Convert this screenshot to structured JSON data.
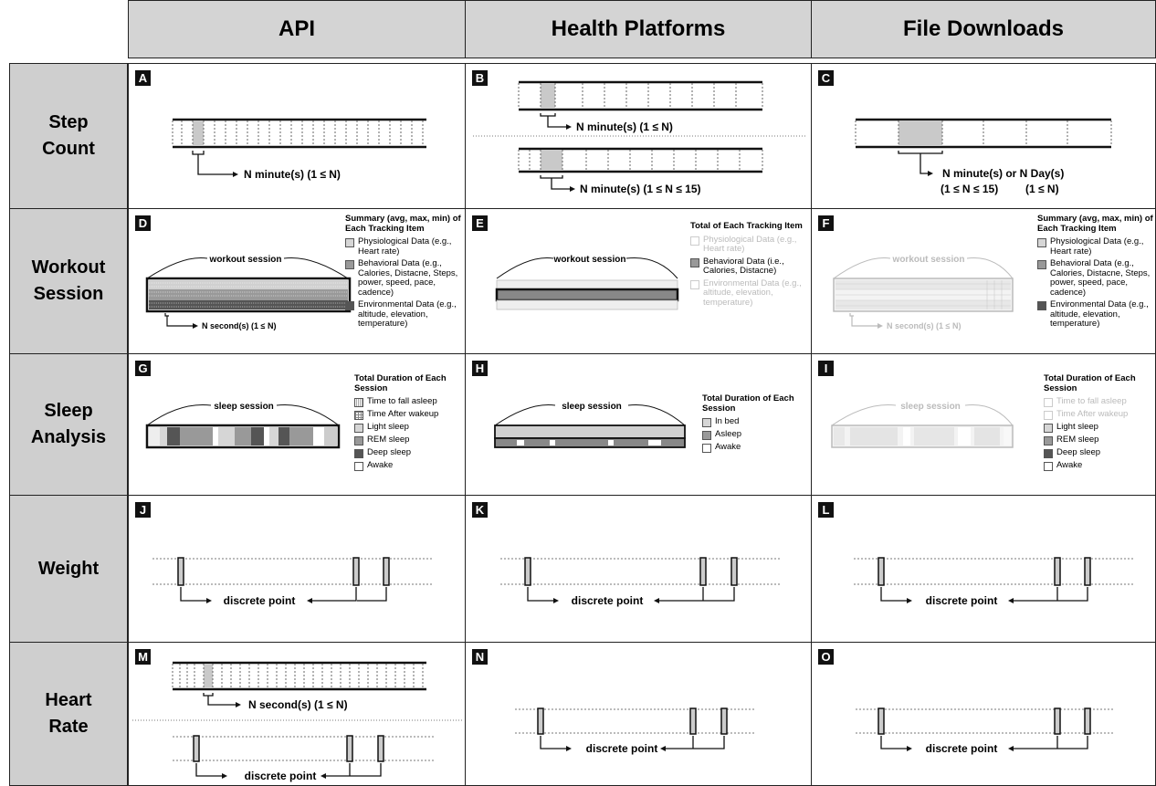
{
  "columns": [
    "API",
    "Health Platforms",
    "File Downloads"
  ],
  "rows": [
    {
      "label": "Step\nCount"
    },
    {
      "label": "Workout\nSession"
    },
    {
      "label": "Sleep\nAnalysis"
    },
    {
      "label": "Weight"
    },
    {
      "label": "Heart\nRate"
    }
  ],
  "panels": {
    "A": {
      "letter": "A",
      "label": "N minute(s) (1 ≤ N)"
    },
    "B": {
      "letter": "B",
      "label1": "N minute(s) (1 ≤ N)",
      "label2": "N minute(s) (1 ≤ N ≤ 15)"
    },
    "C": {
      "letter": "C",
      "label1": "N minute(s) or N Day(s)",
      "label2": "(1 ≤ N ≤ 15)",
      "label3": "(1 ≤ N)"
    },
    "D": {
      "letter": "D",
      "session": "workout session",
      "res": "N second(s) (1 ≤ N)",
      "legend_title": "Summary (avg, max, min) of Each Tracking Item",
      "items": [
        "Physiological Data (e.g., Heart rate)",
        "Behavioral Data (e.g., Calories, Distacne, Steps, power, speed, pace, cadence)",
        "Environmental Data (e.g., altitude, elevation, temperature)"
      ]
    },
    "E": {
      "letter": "E",
      "session": "workout session",
      "legend_title": "Total of Each Tracking Item",
      "items": [
        "Physiological Data (e.g., Heart rate)",
        "Behavioral Data (i.e., Calories, Distacne)",
        "Environmental Data (e.g., altitude, elevation, temperature)"
      ]
    },
    "F": {
      "letter": "F",
      "session": "workout session",
      "res": "N second(s) (1 ≤ N)",
      "legend_title": "Summary (avg, max, min) of Each Tracking Item",
      "items": [
        "Physiological Data (e.g., Heart rate)",
        "Behavioral Data (e.g., Calories, Distacne, Steps, power, speed, pace, cadence)",
        "Environmental Data (e.g., altitude, elevation, temperature)"
      ]
    },
    "G": {
      "letter": "G",
      "session": "sleep session",
      "legend_title": "Total Duration of Each Session",
      "items": [
        "Time to fall asleep",
        "Time After wakeup",
        "Light sleep",
        "REM sleep",
        "Deep sleep",
        "Awake"
      ]
    },
    "H": {
      "letter": "H",
      "session": "sleep session",
      "legend_title": "Total Duration of Each Session",
      "items": [
        "In bed",
        "Asleep",
        "Awake"
      ]
    },
    "I": {
      "letter": "I",
      "session": "sleep session",
      "legend_title": "Total Duration of Each Session",
      "items": [
        "Time to fall asleep",
        "Time After wakeup",
        "Light sleep",
        "REM sleep",
        "Deep sleep",
        "Awake"
      ]
    },
    "J": {
      "letter": "J",
      "label": "discrete point"
    },
    "K": {
      "letter": "K",
      "label": "discrete point"
    },
    "L": {
      "letter": "L",
      "label": "discrete point"
    },
    "M": {
      "letter": "M",
      "label1": "N second(s) (1 ≤ N)",
      "label2": "discrete point"
    },
    "N": {
      "letter": "N",
      "label": "discrete point"
    },
    "O": {
      "letter": "O",
      "label": "discrete point"
    }
  }
}
